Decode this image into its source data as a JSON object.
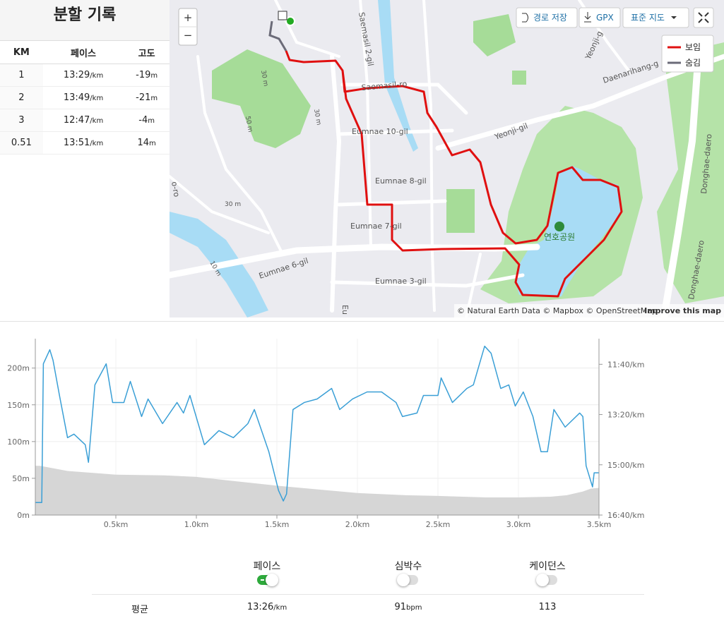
{
  "splits": {
    "title": "분할 기록",
    "headers": [
      "KM",
      "페이스",
      "고도"
    ],
    "rows": [
      {
        "km": "1",
        "pace": "13:29",
        "pace_unit": "/km",
        "elev": "-19",
        "elev_unit": "m"
      },
      {
        "km": "2",
        "pace": "13:49",
        "pace_unit": "/km",
        "elev": "-21",
        "elev_unit": "m"
      },
      {
        "km": "3",
        "pace": "12:47",
        "pace_unit": "/km",
        "elev": "-4",
        "elev_unit": "m"
      },
      {
        "km": "0.51",
        "pace": "13:51",
        "pace_unit": "/km",
        "elev": "14",
        "elev_unit": "m"
      }
    ]
  },
  "map": {
    "zoom_in": "+",
    "zoom_out": "−",
    "buttons": [
      "경로 저장",
      "GPX",
      "표준 지도"
    ],
    "legend": [
      "보임",
      "숨김"
    ],
    "attribution": "© Natural Earth Data © Mapbox © OpenStreetMap",
    "improve": "Improve this map",
    "labels": [
      "Saemasil 2-gil",
      "Saemasil-ro",
      "Eumnae 10-gil",
      "Eumnae 8-gil",
      "Eumnae 7-gil",
      "Eumnae 6-gil",
      "Eumnae 3-gil",
      "Yeonji-gil",
      "Yeonji-g",
      "Daenarihang-g",
      "Donghae-daero",
      "Donghae-daero",
      "연호공원",
      "30 m",
      "30 m",
      "50 m",
      "30 m",
      "10 m",
      "o-ro",
      "Eu"
    ]
  },
  "chart_data": {
    "type": "line",
    "xlim": [
      0,
      3.5
    ],
    "xticks": [
      {
        "value": 0.5,
        "label": "0.5km"
      },
      {
        "value": 1.0,
        "label": "1.0km"
      },
      {
        "value": 1.5,
        "label": "1.5km"
      },
      {
        "value": 2.0,
        "label": "2.0km"
      },
      {
        "value": 2.5,
        "label": "2.5km"
      },
      {
        "value": 3.0,
        "label": "3.0km"
      },
      {
        "value": 3.5,
        "label": "3.5km"
      }
    ],
    "ylim": [
      0,
      240
    ],
    "yticks": [
      {
        "value": 0,
        "label": "0m"
      },
      {
        "value": 50,
        "label": "50m"
      },
      {
        "value": 100,
        "label": "100m"
      },
      {
        "value": 150,
        "label": "150m"
      },
      {
        "value": 200,
        "label": "200m"
      }
    ],
    "y2lim": [
      1000,
      649
    ],
    "y2ticks": [
      {
        "value": 1000,
        "label": "16:40/km"
      },
      {
        "value": 900,
        "label": "15:00/km"
      },
      {
        "value": 800,
        "label": "13:20/km"
      },
      {
        "value": 700,
        "label": "11:40/km"
      }
    ],
    "grid": true,
    "series": [
      {
        "type": "area",
        "color": "#d6d6d6",
        "x": [
          0,
          0.03,
          0.2,
          0.5,
          0.8,
          1.0,
          1.2,
          1.5,
          1.8,
          2.0,
          2.3,
          2.5,
          2.8,
          3.0,
          3.2,
          3.3,
          3.4,
          3.45,
          3.5
        ],
        "values": [
          67,
          67,
          60,
          55,
          54,
          52,
          47,
          40,
          34,
          30,
          27,
          26,
          24,
          24,
          25,
          27,
          32,
          36,
          37
        ]
      },
      {
        "type": "line",
        "axis": "y2",
        "color": "#3a9fd6",
        "x": [
          0,
          0.04,
          0.05,
          0.09,
          0.11,
          0.15,
          0.2,
          0.24,
          0.31,
          0.33,
          0.37,
          0.44,
          0.48,
          0.55,
          0.59,
          0.66,
          0.7,
          0.79,
          0.88,
          0.92,
          0.96,
          1.05,
          1.14,
          1.23,
          1.32,
          1.36,
          1.45,
          1.51,
          1.54,
          1.56,
          1.6,
          1.67,
          1.75,
          1.84,
          1.89,
          1.97,
          2.06,
          2.15,
          2.24,
          2.28,
          2.37,
          2.41,
          2.5,
          2.52,
          2.59,
          2.68,
          2.72,
          2.79,
          2.83,
          2.89,
          2.94,
          2.98,
          3.03,
          3.09,
          3.14,
          3.18,
          3.22,
          3.29,
          3.38,
          3.4,
          3.42,
          3.46,
          3.47,
          3.5
        ],
        "values": [
          975,
          975,
          699,
          671,
          692,
          762,
          846,
          839,
          860,
          895,
          741,
          699,
          776,
          776,
          734,
          804,
          769,
          818,
          776,
          797,
          762,
          860,
          832,
          846,
          818,
          790,
          874,
          951,
          972,
          958,
          790,
          776,
          769,
          748,
          790,
          769,
          755,
          755,
          776,
          804,
          797,
          762,
          762,
          727,
          776,
          748,
          741,
          664,
          678,
          748,
          741,
          783,
          755,
          804,
          874,
          874,
          790,
          825,
          797,
          804,
          902,
          944,
          916,
          916
        ]
      }
    ]
  },
  "summary": {
    "toggles": [
      {
        "label": "페이스",
        "on": true
      },
      {
        "label": "심박수",
        "on": false
      },
      {
        "label": "케이던스",
        "on": false
      }
    ],
    "avg_label": "평균",
    "averages": [
      {
        "value": "13:26",
        "unit": "/km"
      },
      {
        "value": "91",
        "unit": "bpm"
      },
      {
        "value": "113",
        "unit": ""
      }
    ]
  }
}
